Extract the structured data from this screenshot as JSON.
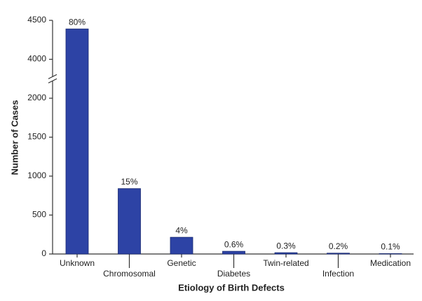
{
  "chart_data": {
    "type": "bar",
    "xlabel": "Etiology of Birth Defects",
    "ylabel": "Number of Cases",
    "categories": [
      "Unknown",
      "Chromosomal",
      "Genetic",
      "Diabetes",
      "Twin-related",
      "Infection",
      "Medication"
    ],
    "values": [
      4390,
      840,
      215,
      35,
      17,
      11,
      5
    ],
    "percent_labels": [
      "80%",
      "15%",
      "4%",
      "0.6%",
      "0.3%",
      "0.2%",
      "0.1%"
    ],
    "color": "#2d43a5",
    "ylim": [
      0,
      4500
    ],
    "ybreak": [
      2250,
      3750
    ],
    "yticks": [
      0,
      500,
      1000,
      1500,
      2000,
      4000,
      4500
    ]
  }
}
